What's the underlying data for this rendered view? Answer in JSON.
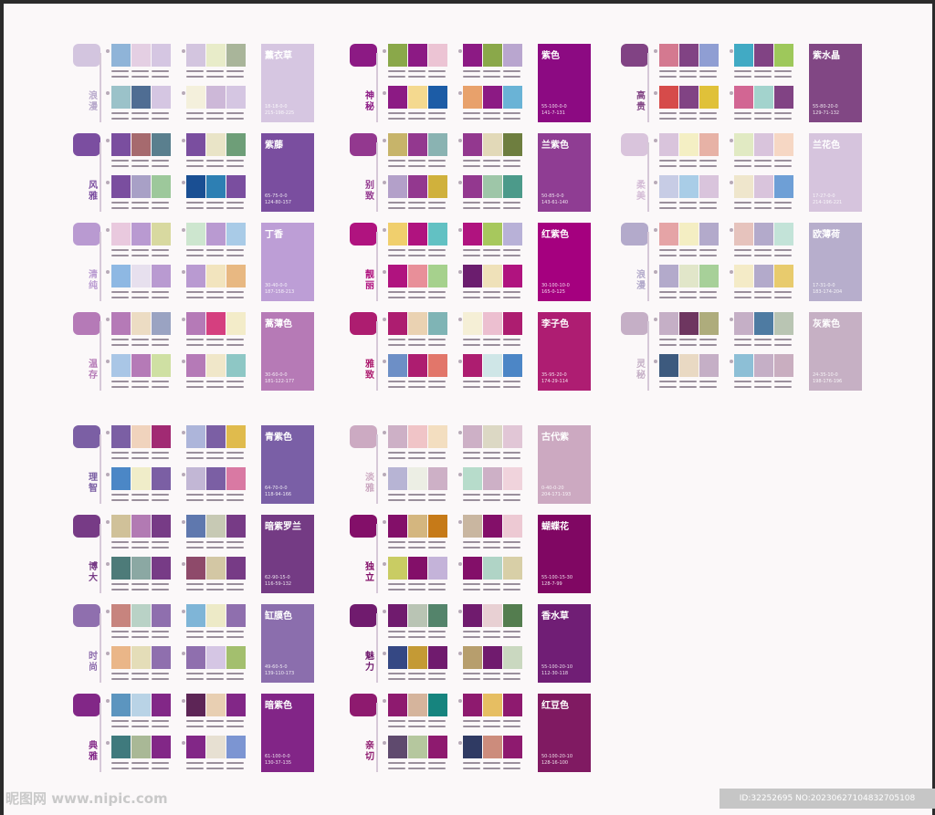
{
  "sections": [
    {
      "name": "浪漫",
      "label_color": "#b9aacc",
      "tab": "#d3c5df",
      "big": {
        "name": "薰衣草",
        "color": "#d6c6e1",
        "code": [
          "18-18-0-0",
          "215-198-225"
        ]
      },
      "g1": [
        "#8fb4d8",
        "#e4cfe3",
        "#d5c6e2"
      ],
      "g2": [
        "#d3c5df",
        "#e8ecc9",
        "#a9b59a"
      ],
      "g3": [
        "#9bc2c9",
        "#4f6d93",
        "#d5c6e2"
      ],
      "g4": [
        "#f4f0dc",
        "#cdb8d8",
        "#d5c6e2"
      ]
    },
    {
      "name": "风雅",
      "label_color": "#7b4ea0",
      "tab": "#7b4ea0",
      "big": {
        "name": "紫藤",
        "color": "#7a4e9f",
        "code": [
          "65-75-0-0",
          "124-80-157"
        ]
      },
      "g1": [
        "#7a4e9f",
        "#a66a6e",
        "#5a7f8e"
      ],
      "g2": [
        "#7a4e9f",
        "#e9e4c7",
        "#6e9e78"
      ],
      "g3": [
        "#7a4e9f",
        "#a8a0c6",
        "#9dc89b"
      ],
      "g4": [
        "#1a4f93",
        "#2d7fb3",
        "#7a4e9f"
      ]
    },
    {
      "name": "清纯",
      "label_color": "#b99ad1",
      "tab": "#b99ad1",
      "big": {
        "name": "丁香",
        "color": "#bd9ed6",
        "code": [
          "30-40-0-0",
          "187-158-213"
        ]
      },
      "g1": [
        "#e9c9de",
        "#b99ad1",
        "#d8d9a0"
      ],
      "g2": [
        "#cde6cf",
        "#b99ad1",
        "#a9cbe7"
      ],
      "g3": [
        "#8eb8e3",
        "#e7e0ee",
        "#b99ad1"
      ],
      "g4": [
        "#b99ad1",
        "#f2e4be",
        "#e8b882"
      ]
    },
    {
      "name": "温存",
      "label_color": "#b57ab7",
      "tab": "#b57ab7",
      "big": {
        "name": "蒿薄色",
        "color": "#b67ab6",
        "code": [
          "30-60-0-0",
          "181-122-177"
        ]
      },
      "g1": [
        "#b57ab7",
        "#ecdcc3",
        "#9aa3c2"
      ],
      "g2": [
        "#b57ab7",
        "#d53f7f",
        "#f3ecc9"
      ],
      "g3": [
        "#a9c6e6",
        "#b57ab7",
        "#cfe0a3"
      ],
      "g4": [
        "#b57ab7",
        "#f0e7c9",
        "#8ec7c5"
      ]
    },
    {
      "name": "神秘",
      "label_color": "#8c1a84",
      "tab": "#8c1a84",
      "big": {
        "name": "紫色",
        "color": "#8c0a82",
        "code": [
          "55-100-0-0",
          "141-7-131"
        ]
      },
      "g1": [
        "#8aa84a",
        "#8c1a84",
        "#ecc4d4"
      ],
      "g2": [
        "#8c1a84",
        "#8aa84a",
        "#b9a6cf"
      ],
      "g3": [
        "#8c1a84",
        "#f4d98f",
        "#1c5ca6"
      ],
      "g4": [
        "#e8a16b",
        "#8c1a84",
        "#6ab3d6"
      ]
    },
    {
      "name": "别致",
      "label_color": "#93388f",
      "tab": "#93388f",
      "big": {
        "name": "兰紫色",
        "color": "#8f3d93",
        "code": [
          "50-85-0-0",
          "143-61-140"
        ]
      },
      "g1": [
        "#c7b46a",
        "#93388f",
        "#8ab3b2"
      ],
      "g2": [
        "#93388f",
        "#e2d9b8",
        "#6e7e3f"
      ],
      "g3": [
        "#b3a0c9",
        "#93388f",
        "#d0b13c"
      ],
      "g4": [
        "#93388f",
        "#9ec6a8",
        "#4c9a8a"
      ]
    },
    {
      "name": "靓丽",
      "label_color": "#b0137f",
      "tab": "#b0137f",
      "big": {
        "name": "红紫色",
        "color": "#a5007f",
        "code": [
          "30-100-10-0",
          "165-0-125"
        ]
      },
      "g1": [
        "#f0cf6d",
        "#b0137f",
        "#62c1c3"
      ],
      "g2": [
        "#b0137f",
        "#a7c85d",
        "#b8b1d7"
      ],
      "g3": [
        "#b0137f",
        "#e88f99",
        "#a6d18d"
      ],
      "g4": [
        "#6b1d6e",
        "#efe1b9",
        "#b0137f"
      ]
    },
    {
      "name": "雅致",
      "label_color": "#ad1d70",
      "tab": "#ad1d70",
      "big": {
        "name": "李子色",
        "color": "#ae1d72",
        "code": [
          "35-95-20-0",
          "174-29-114"
        ]
      },
      "g1": [
        "#ad1d70",
        "#ead2b2",
        "#7fb4b5"
      ],
      "g2": [
        "#f5efd6",
        "#ecbfd0",
        "#ad1d70"
      ],
      "g3": [
        "#6d8fc6",
        "#ad1d70",
        "#e2766a"
      ],
      "g4": [
        "#ad1d70",
        "#cfe6e7",
        "#4c86c6"
      ]
    },
    {
      "name": "高贵",
      "label_color": "#814384",
      "tab": "#814384",
      "big": {
        "name": "紫水晶",
        "color": "#814784",
        "code": [
          "55-80-20-0",
          "129-71-132"
        ]
      },
      "g1": [
        "#d47990",
        "#814384",
        "#8f9ed3"
      ],
      "g2": [
        "#41aac4",
        "#814384",
        "#9ec85b"
      ],
      "g3": [
        "#d64b4a",
        "#814384",
        "#e0c139"
      ],
      "g4": [
        "#d26693",
        "#a3d3cd",
        "#814384"
      ]
    },
    {
      "name": "柔美",
      "label_color": "#d4bcd6",
      "tab": "#d9c4dc",
      "big": {
        "name": "兰花色",
        "color": "#d6c4dd",
        "code": [
          "17-27-0-0",
          "214-196-221"
        ]
      },
      "g1": [
        "#d9c4dc",
        "#f4efc4",
        "#e7b2a6"
      ],
      "g2": [
        "#e1eac3",
        "#d9c4dc",
        "#f6d7c4"
      ],
      "g3": [
        "#c7cce5",
        "#a9cde7",
        "#d9c4dc"
      ],
      "g4": [
        "#efe6cc",
        "#d9c4dc",
        "#6e9fd6"
      ]
    },
    {
      "name": "浪漫",
      "label_color": "#b3aacb",
      "tab": "#b3aacb",
      "big": {
        "name": "欧薄荷",
        "color": "#b7aecc",
        "code": [
          "17-31-0-0",
          "183-174-204"
        ]
      },
      "g1": [
        "#e5a4a6",
        "#f4eec3",
        "#b3aacb"
      ],
      "g2": [
        "#e6c3bd",
        "#b3aacb",
        "#c3e3d8"
      ],
      "g3": [
        "#b3aacb",
        "#e1e6c9",
        "#a7d099"
      ],
      "g4": [
        "#f4ebc7",
        "#b3aacb",
        "#e8cb6d"
      ]
    },
    {
      "name": "灵秘",
      "label_color": "#c5afc6",
      "tab": "#c5afc6",
      "big": {
        "name": "灰紫色",
        "color": "#c6b0c4",
        "code": [
          "24-35-10-0",
          "198-176-196"
        ]
      },
      "g1": [
        "#c5afc6",
        "#6e3660",
        "#aeac7c"
      ],
      "g2": [
        "#c5afc6",
        "#4e7ba2",
        "#b9c5b3"
      ],
      "g3": [
        "#3d5a7e",
        "#e9d9c3",
        "#c5afc6"
      ],
      "g4": [
        "#8dbfd6",
        "#c5afc6",
        "#c9aec0"
      ]
    },
    {
      "name": "理智",
      "label_color": "#7b5fa4",
      "tab": "#7b5fa4",
      "big": {
        "name": "青紫色",
        "color": "#7a5fa6",
        "code": [
          "64-70-0-0",
          "118-94-166"
        ]
      },
      "g1": [
        "#7b5fa4",
        "#f0d3bd",
        "#a12a73"
      ],
      "g2": [
        "#adb5da",
        "#7b5fa4",
        "#e0bb4d"
      ],
      "g3": [
        "#4b87c6",
        "#f0edc9",
        "#7b5fa4"
      ],
      "g4": [
        "#c2b7d5",
        "#7b5fa4",
        "#d979a3"
      ]
    },
    {
      "name": "博大",
      "label_color": "#773b86",
      "tab": "#773b86",
      "big": {
        "name": "暗紫罗兰",
        "color": "#743b84",
        "code": [
          "62-90-15-0",
          "116-59-132"
        ]
      },
      "g1": [
        "#d0c199",
        "#b27ab3",
        "#773b86"
      ],
      "g2": [
        "#5f78ae",
        "#c7c9b4",
        "#773b86"
      ],
      "g3": [
        "#4d7b79",
        "#8ba8a3",
        "#773b86"
      ],
      "g4": [
        "#8e4a6a",
        "#d3c7a4",
        "#773b86"
      ]
    },
    {
      "name": "时尚",
      "label_color": "#8f6fae",
      "tab": "#8f6fae",
      "big": {
        "name": "缸膜色",
        "color": "#8b6ead",
        "code": [
          "49-60-5-0",
          "139-110-173"
        ]
      },
      "g1": [
        "#c7847e",
        "#b9d2c6",
        "#8f6fae"
      ],
      "g2": [
        "#7fb5d7",
        "#edeac7",
        "#8f6fae"
      ],
      "g3": [
        "#eab688",
        "#e4ddb8",
        "#8f6fae"
      ],
      "g4": [
        "#8f6fae",
        "#d5c6e4",
        "#a3bf6e"
      ]
    },
    {
      "name": "典雅",
      "label_color": "#822787",
      "tab": "#822787",
      "big": {
        "name": "暗紫色",
        "color": "#822587",
        "code": [
          "61-100-0-0",
          "130-37-135"
        ]
      },
      "g1": [
        "#5c95bf",
        "#b9d3e6",
        "#822787"
      ],
      "g2": [
        "#5d2556",
        "#e8cfb2",
        "#822787"
      ],
      "g3": [
        "#3f7a7d",
        "#a9b896",
        "#822787"
      ],
      "g4": [
        "#822787",
        "#e7e0d2",
        "#7c95d2"
      ]
    },
    {
      "name": "淡雅",
      "label_color": "#ccaac2",
      "tab": "#ccaac2",
      "big": {
        "name": "古代紫",
        "color": "#cca9c1",
        "code": [
          "0-40-0-20",
          "204-171-193"
        ]
      },
      "g1": [
        "#cdb0c6",
        "#f0c4c7",
        "#f3dec0"
      ],
      "g2": [
        "#cdb0c6",
        "#dcd8c4",
        "#e1c6d6"
      ],
      "g3": [
        "#b7b4d4",
        "#eceee4",
        "#cdb0c6"
      ],
      "g4": [
        "#b7dccb",
        "#cdb0c6",
        "#f0d3dc"
      ]
    },
    {
      "name": "独立",
      "label_color": "#830f69",
      "tab": "#830f69",
      "big": {
        "name": "蝴蝶花",
        "color": "#800763",
        "code": [
          "55-100-15-30",
          "128-7-99"
        ]
      },
      "g1": [
        "#830f69",
        "#d4b67f",
        "#c67a18"
      ],
      "g2": [
        "#c9b6a0",
        "#830f69",
        "#edc9d3"
      ],
      "g3": [
        "#c9cc63",
        "#830f69",
        "#c4b3d9"
      ],
      "g4": [
        "#830f69",
        "#b0d4c6",
        "#d8cfa7"
      ]
    },
    {
      "name": "魅力",
      "label_color": "#701b6e",
      "tab": "#701b6e",
      "big": {
        "name": "香水草",
        "color": "#701e75",
        "code": [
          "55-100-20-10",
          "112-30-118"
        ]
      },
      "g1": [
        "#701b6e",
        "#b9c4b4",
        "#54846b"
      ],
      "g2": [
        "#701b6e",
        "#e8d0d3",
        "#547d4f"
      ],
      "g3": [
        "#354884",
        "#c49a35",
        "#701b6e"
      ],
      "g4": [
        "#b79e6d",
        "#701b6e",
        "#cad8c0"
      ]
    },
    {
      "name": "亲切",
      "label_color": "#8e1a6f",
      "tab": "#8e1a6f",
      "big": {
        "name": "红豆色",
        "color": "#801a62",
        "code": [
          "50-100-20-10",
          "128-16-100"
        ]
      },
      "g1": [
        "#8e1a6f",
        "#d5b49c",
        "#16847e"
      ],
      "g2": [
        "#8e1a6f",
        "#e6be62",
        "#8e1a6f"
      ],
      "g3": [
        "#5f4a6e",
        "#b5c79e",
        "#8e1a6f"
      ],
      "g4": [
        "#2f3a63",
        "#cc8c7c",
        "#8e1a6f"
      ]
    }
  ],
  "watermark": {
    "site": "昵图网 www.nipic.com",
    "id_line": "ID:32252695 NO:20230627104832705108"
  }
}
